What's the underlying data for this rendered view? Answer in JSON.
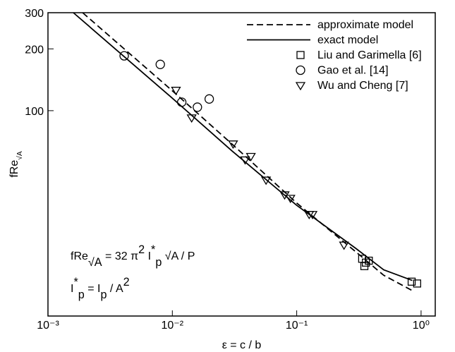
{
  "chart_data": {
    "type": "line",
    "xlabel": [
      {
        "text": "ε = c / b",
        "style": "normal"
      }
    ],
    "ylabel": [
      {
        "text": "fRe",
        "style": "normal"
      },
      {
        "text": "√A",
        "style": "sub"
      }
    ],
    "xscale": "log",
    "yscale": "log",
    "xlim": [
      0.001,
      1.3
    ],
    "ylim": [
      10,
      300
    ],
    "xticks": [
      {
        "value": 0.001,
        "label": "10⁻³"
      },
      {
        "value": 0.01,
        "label": "10⁻²"
      },
      {
        "value": 0.1,
        "label": "10⁻¹"
      },
      {
        "value": 1,
        "label": "10⁰"
      }
    ],
    "yticks": [
      100,
      200,
      300
    ],
    "legend": "upper right",
    "series": [
      {
        "name": "approximate model",
        "color": "#000000",
        "style": "dashed",
        "x": [
          0.0019,
          0.01,
          0.03,
          0.1,
          0.3,
          0.5,
          0.85
        ],
        "values": [
          300,
          125,
          69,
          35.5,
          20.5,
          15.8,
          13.3
        ]
      },
      {
        "name": "exact model",
        "color": "#000000",
        "style": "solid",
        "x": [
          0.0016,
          0.01,
          0.03,
          0.1,
          0.3,
          0.5,
          0.85
        ],
        "values": [
          300,
          115,
          63.9,
          34.6,
          21.3,
          16.8,
          14.9
        ]
      },
      {
        "name": "Liu and Garimella [6]",
        "color": "#000000",
        "marker": "square",
        "x": [
          0.336,
          0.35,
          0.38,
          0.36,
          0.84,
          0.93
        ],
        "values": [
          19.0,
          17.5,
          18.6,
          18.2,
          14.7,
          14.4
        ]
      },
      {
        "name": "Gao et al. [14]",
        "color": "#000000",
        "marker": "circle",
        "x": [
          0.0041,
          0.008,
          0.0119,
          0.0159,
          0.0198
        ],
        "values": [
          185,
          168,
          110,
          104,
          114
        ]
      },
      {
        "name": "Wu and Cheng [7]",
        "color": "#000000",
        "marker": "triangle-down",
        "x": [
          0.0107,
          0.0143,
          0.0308,
          0.0385,
          0.0428,
          0.0567,
          0.08,
          0.089,
          0.126,
          0.134,
          0.24
        ],
        "values": [
          126,
          92.4,
          69,
          57.7,
          60,
          46,
          39,
          37.5,
          31.3,
          31.3,
          22.2
        ]
      }
    ],
    "annotations": [
      [
        {
          "text": "fRe",
          "style": "normal"
        },
        {
          "text": "√A",
          "style": "sub"
        },
        {
          "text": " = 32 π",
          "style": "normal"
        },
        {
          "text": "2",
          "style": "sup"
        },
        {
          "text": " I",
          "style": "normal"
        },
        {
          "text": "*",
          "style": "sup"
        },
        {
          "text": "p",
          "style": "sub"
        },
        {
          "text": " √A / P",
          "style": "normal"
        }
      ],
      [
        {
          "text": "I",
          "style": "normal"
        },
        {
          "text": "*",
          "style": "sup"
        },
        {
          "text": "p",
          "style": "sub"
        },
        {
          "text": " = I",
          "style": "normal"
        },
        {
          "text": "p",
          "style": "sub"
        },
        {
          "text": " / A",
          "style": "normal"
        },
        {
          "text": "2",
          "style": "sup"
        }
      ]
    ]
  }
}
